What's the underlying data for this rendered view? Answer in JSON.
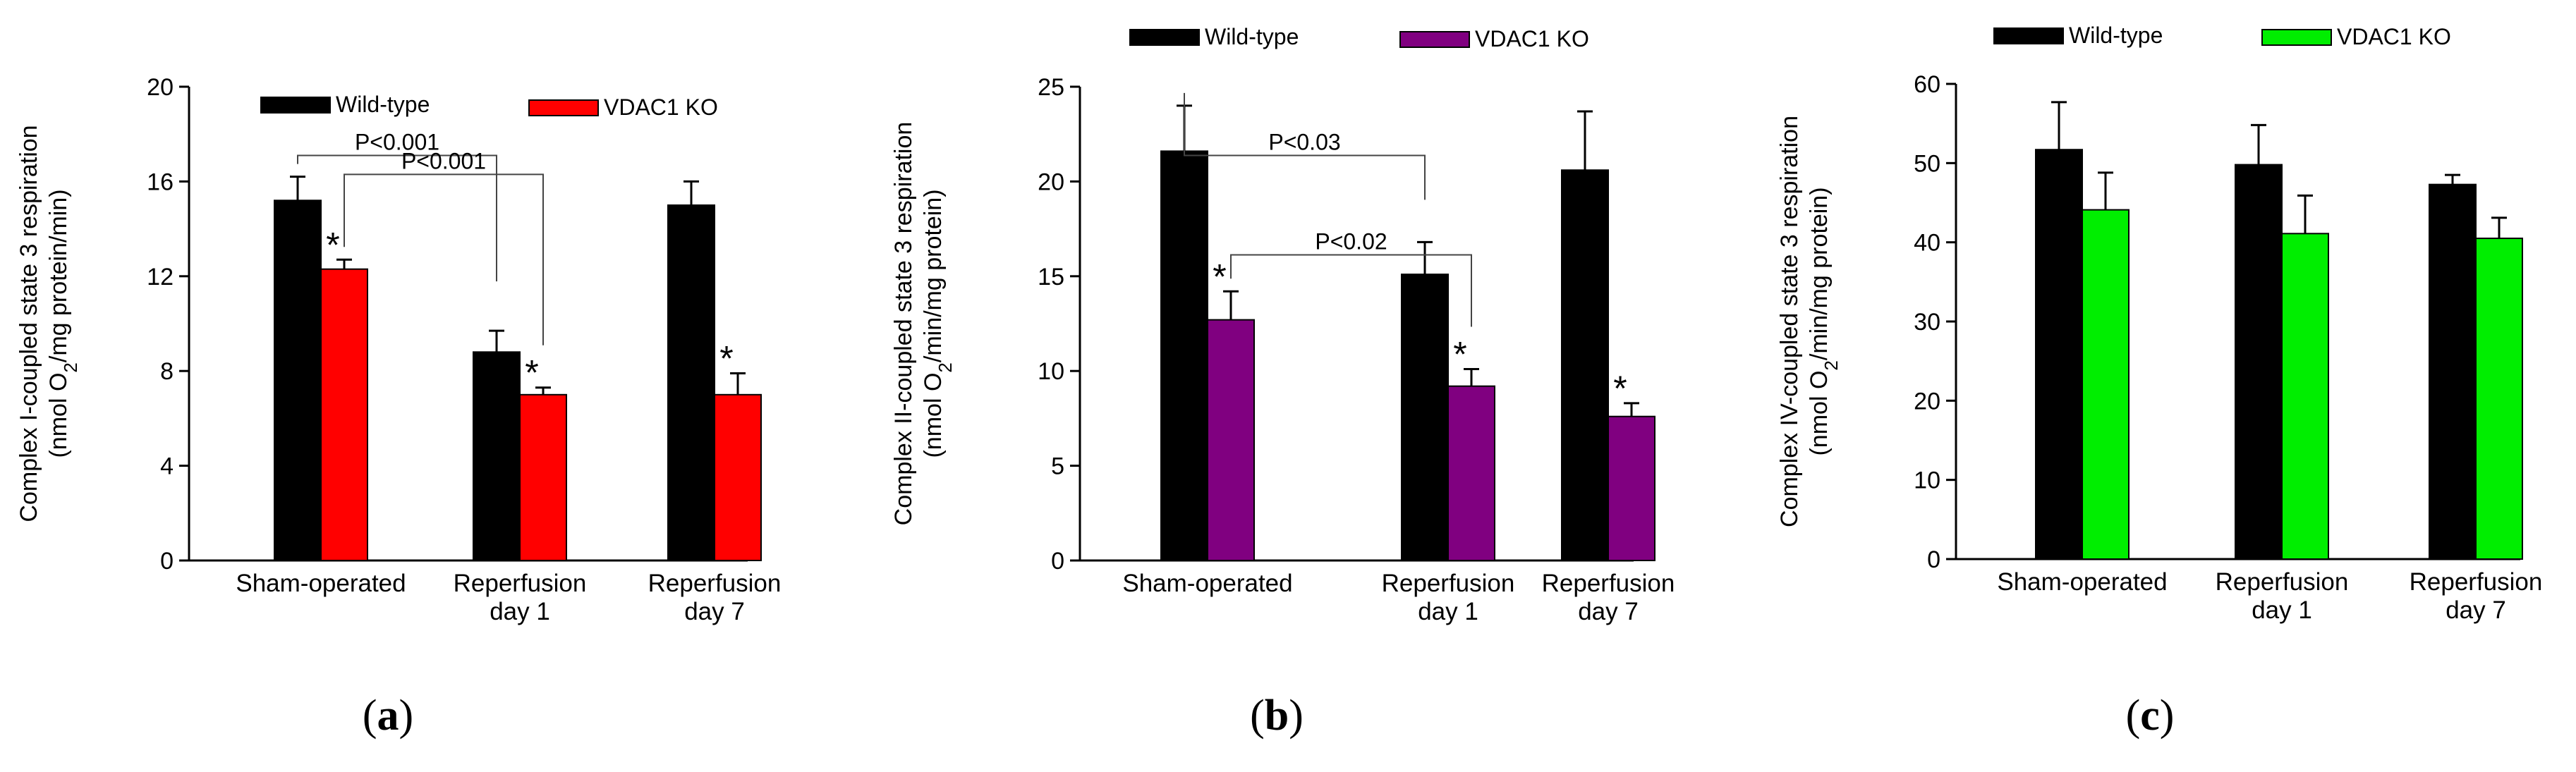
{
  "chart_data": [
    {
      "panel_label": "a",
      "type": "bar",
      "categories": [
        [
          "Sham-operated"
        ],
        [
          "Reperfusion",
          "day 1"
        ],
        [
          "Reperfusion",
          "day 7"
        ]
      ],
      "ylabel_line1": "Complex I-coupled state 3 respiration",
      "ylabel_line2": {
        "pre": "(nmol O",
        "sub": "2",
        "post": "/mg protein/min)"
      },
      "ylim": [
        0,
        20
      ],
      "yticks": [
        0,
        4,
        8,
        12,
        16,
        20
      ],
      "legend": [
        "Wild-type",
        "VDAC1 KO"
      ],
      "colors": [
        "#000000",
        "#ff0000"
      ],
      "series": [
        {
          "name": "Wild-type",
          "values": [
            15.2,
            8.8,
            15.0
          ],
          "errors": [
            1.0,
            0.9,
            1.0
          ]
        },
        {
          "name": "VDAC1 KO",
          "values": [
            12.3,
            7.0,
            7.0
          ],
          "errors": [
            0.4,
            0.3,
            0.9
          ]
        }
      ],
      "significance": [
        {
          "series": 1,
          "category": 0
        },
        {
          "series": 1,
          "category": 1
        },
        {
          "series": 1,
          "category": 2
        }
      ],
      "brackets": [
        {
          "label": "P<0.001",
          "from": [
            0,
            0
          ],
          "to": [
            1,
            0
          ]
        },
        {
          "label": "P<0.001",
          "from": [
            0,
            1
          ],
          "to": [
            1,
            1
          ]
        }
      ]
    },
    {
      "panel_label": "b",
      "type": "bar",
      "categories": [
        [
          "Sham-operated"
        ],
        [
          "Reperfusion",
          "day 1"
        ],
        [
          "Reperfusion",
          "day 7"
        ]
      ],
      "ylabel_line1": "Complex II-coupled state 3 respiration",
      "ylabel_line2": {
        "pre": "(nmol O",
        "sub": "2",
        "post": "/min/mg protein)"
      },
      "ylim": [
        0,
        25
      ],
      "yticks": [
        0,
        5,
        10,
        15,
        20,
        25
      ],
      "legend": [
        "Wild-type",
        "VDAC1 KO"
      ],
      "colors": [
        "#000000",
        "#800080"
      ],
      "series": [
        {
          "name": "Wild-type",
          "values": [
            21.6,
            15.1,
            20.6
          ],
          "errors": [
            2.4,
            1.7,
            3.1
          ]
        },
        {
          "name": "VDAC1 KO",
          "values": [
            12.7,
            9.2,
            7.6
          ],
          "errors": [
            1.5,
            0.9,
            0.7
          ]
        }
      ],
      "significance": [
        {
          "series": 1,
          "category": 0
        },
        {
          "series": 1,
          "category": 1
        },
        {
          "series": 1,
          "category": 2
        }
      ],
      "brackets": [
        {
          "label": "P<0.03",
          "from": [
            0,
            0
          ],
          "to": [
            1,
            0
          ]
        },
        {
          "label": "P<0.02",
          "from": [
            0,
            1
          ],
          "to": [
            1,
            1
          ]
        }
      ]
    },
    {
      "panel_label": "c",
      "type": "bar",
      "categories": [
        [
          "Sham-operated"
        ],
        [
          "Reperfusion",
          "day 1"
        ],
        [
          "Reperfusion",
          "day 7"
        ]
      ],
      "ylabel_line1": "Complex IV-coupled state 3 respiration",
      "ylabel_line2": {
        "pre": "(nmol O",
        "sub": "2",
        "post": "/min/mg protein)"
      },
      "ylim": [
        0,
        60
      ],
      "yticks": [
        0,
        10,
        20,
        30,
        40,
        50,
        60
      ],
      "legend": [
        "Wild-type",
        "VDAC1 KO"
      ],
      "colors": [
        "#000000",
        "#00ee00"
      ],
      "series": [
        {
          "name": "Wild-type",
          "values": [
            51.7,
            49.8,
            47.3
          ],
          "errors": [
            6.0,
            5.0,
            1.2
          ]
        },
        {
          "name": "VDAC1 KO",
          "values": [
            44.1,
            41.1,
            40.5
          ],
          "errors": [
            4.7,
            4.8,
            2.6
          ]
        }
      ],
      "significance": [],
      "brackets": []
    }
  ]
}
